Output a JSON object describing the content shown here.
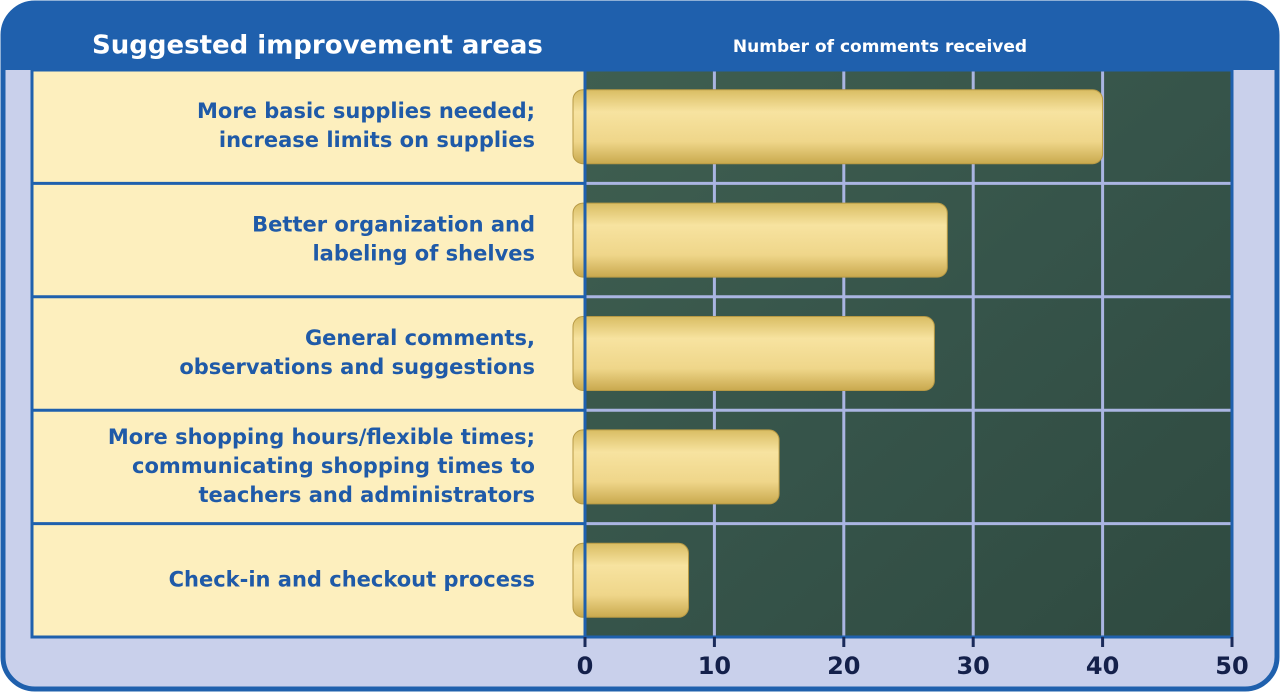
{
  "chart_data": {
    "type": "bar",
    "orientation": "horizontal",
    "title": "Suggested improvement areas",
    "x_label": "Number of comments received",
    "categories": [
      "More basic supplies needed;\nincrease limits on supplies",
      "Better organization and\nlabeling of shelves",
      "General comments,\nobservations and suggestions",
      "More shopping hours/flexible times;\ncommunicating shopping times to\nteachers and administrators",
      "Check-in and checkout process"
    ],
    "values": [
      40,
      28,
      27,
      15,
      8
    ],
    "color": "#efd68a",
    "xlim": [
      0,
      50
    ],
    "xticks": [
      0,
      10,
      20,
      30,
      40,
      50
    ],
    "grid": true
  }
}
